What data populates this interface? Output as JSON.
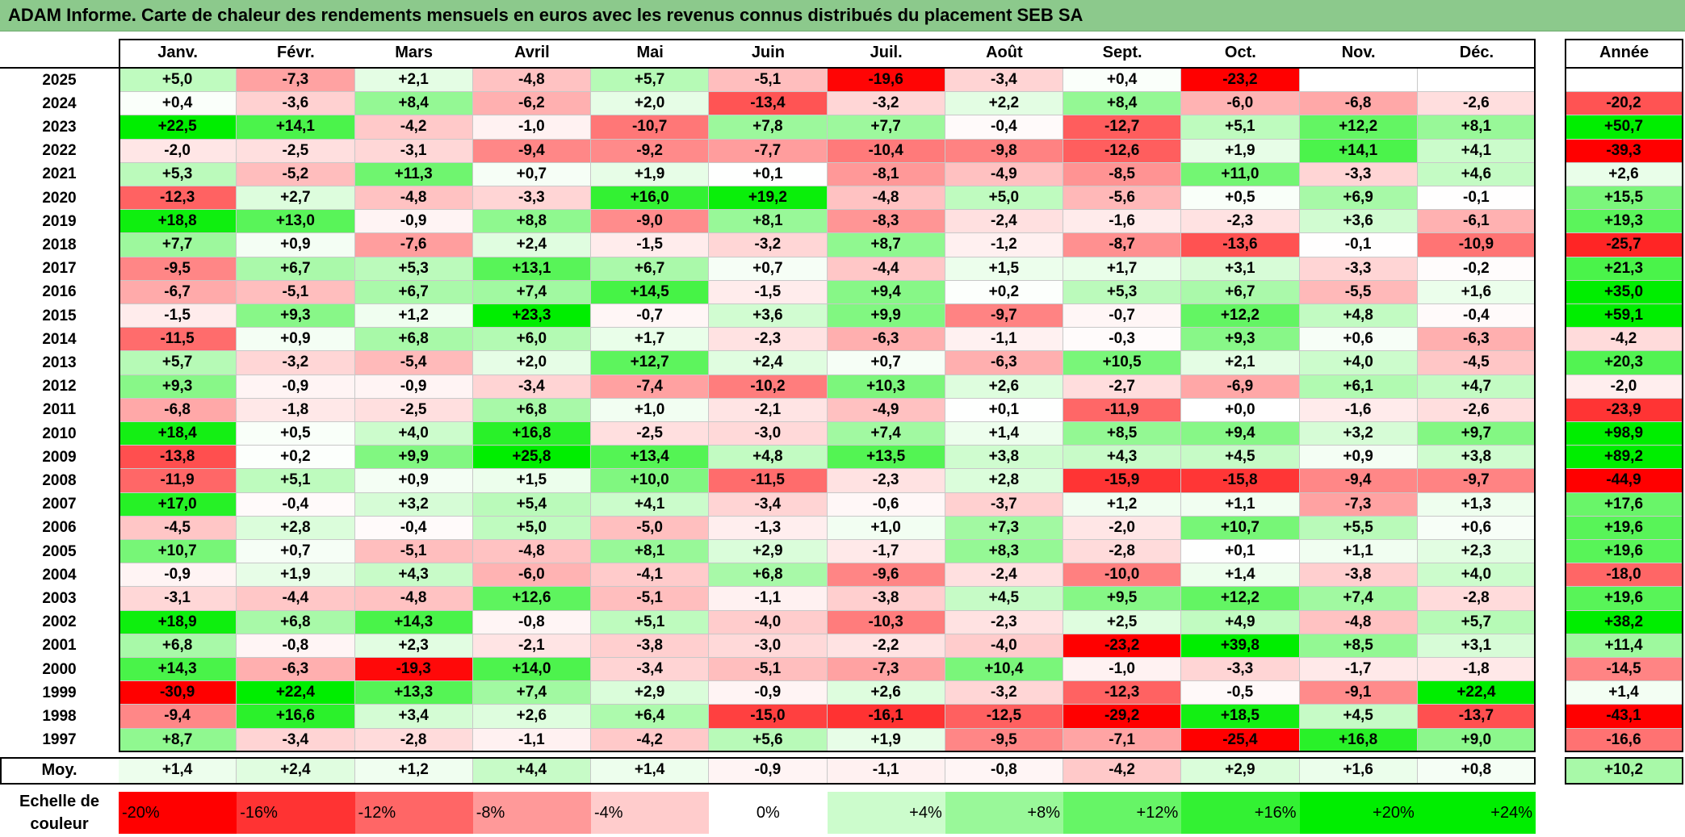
{
  "title": "ADAM Informe. Carte de chaleur des rendements mensuels en euros avec les revenus connus distribués du placement SEB SA",
  "chart_data": {
    "type": "heatmap",
    "columns": [
      "Janv.",
      "Févr.",
      "Mars",
      "Avril",
      "Mai",
      "Juin",
      "Juil.",
      "Août",
      "Sept.",
      "Oct.",
      "Nov.",
      "Déc."
    ],
    "annual_header": "Année",
    "rows": [
      {
        "year": "2025",
        "values": [
          "+5,0",
          "-7,3",
          "+2,1",
          "-4,8",
          "+5,7",
          "-5,1",
          "-19,6",
          "-3,4",
          "+0,4",
          "-23,2",
          "",
          ""
        ],
        "annual": ""
      },
      {
        "year": "2024",
        "values": [
          "+0,4",
          "-3,6",
          "+8,4",
          "-6,2",
          "+2,0",
          "-13,4",
          "-3,2",
          "+2,2",
          "+8,4",
          "-6,0",
          "-6,8",
          "-2,6"
        ],
        "annual": "-20,2"
      },
      {
        "year": "2023",
        "values": [
          "+22,5",
          "+14,1",
          "-4,2",
          "-1,0",
          "-10,7",
          "+7,8",
          "+7,7",
          "-0,4",
          "-12,7",
          "+5,1",
          "+12,2",
          "+8,1"
        ],
        "annual": "+50,7"
      },
      {
        "year": "2022",
        "values": [
          "-2,0",
          "-2,5",
          "-3,1",
          "-9,4",
          "-9,2",
          "-7,7",
          "-10,4",
          "-9,8",
          "-12,6",
          "+1,9",
          "+14,1",
          "+4,1"
        ],
        "annual": "-39,3"
      },
      {
        "year": "2021",
        "values": [
          "+5,3",
          "-5,2",
          "+11,3",
          "+0,7",
          "+1,9",
          "+0,1",
          "-8,1",
          "-4,9",
          "-8,5",
          "+11,0",
          "-3,3",
          "+4,6"
        ],
        "annual": "+2,6"
      },
      {
        "year": "2020",
        "values": [
          "-12,3",
          "+2,7",
          "-4,8",
          "-3,3",
          "+16,0",
          "+19,2",
          "-4,8",
          "+5,0",
          "-5,6",
          "+0,5",
          "+6,9",
          "-0,1"
        ],
        "annual": "+15,5"
      },
      {
        "year": "2019",
        "values": [
          "+18,8",
          "+13,0",
          "-0,9",
          "+8,8",
          "-9,0",
          "+8,1",
          "-8,3",
          "-2,4",
          "-1,6",
          "-2,3",
          "+3,6",
          "-6,1"
        ],
        "annual": "+19,3"
      },
      {
        "year": "2018",
        "values": [
          "+7,7",
          "+0,9",
          "-7,6",
          "+2,4",
          "-1,5",
          "-3,2",
          "+8,7",
          "-1,2",
          "-8,7",
          "-13,6",
          "-0,1",
          "-10,9"
        ],
        "annual": "-25,7"
      },
      {
        "year": "2017",
        "values": [
          "-9,5",
          "+6,7",
          "+5,3",
          "+13,1",
          "+6,7",
          "+0,7",
          "-4,4",
          "+1,5",
          "+1,7",
          "+3,1",
          "-3,3",
          "-0,2"
        ],
        "annual": "+21,3"
      },
      {
        "year": "2016",
        "values": [
          "-6,7",
          "-5,1",
          "+6,7",
          "+7,4",
          "+14,5",
          "-1,5",
          "+9,4",
          "+0,2",
          "+5,3",
          "+6,7",
          "-5,5",
          "+1,6"
        ],
        "annual": "+35,0"
      },
      {
        "year": "2015",
        "values": [
          "-1,5",
          "+9,3",
          "+1,2",
          "+23,3",
          "-0,7",
          "+3,6",
          "+9,9",
          "-9,7",
          "-0,7",
          "+12,2",
          "+4,8",
          "-0,4"
        ],
        "annual": "+59,1"
      },
      {
        "year": "2014",
        "values": [
          "-11,5",
          "+0,9",
          "+6,8",
          "+6,0",
          "+1,7",
          "-2,3",
          "-6,3",
          "-1,1",
          "-0,3",
          "+9,3",
          "+0,6",
          "-6,3"
        ],
        "annual": "-4,2"
      },
      {
        "year": "2013",
        "values": [
          "+5,7",
          "-3,2",
          "-5,4",
          "+2,0",
          "+12,7",
          "+2,4",
          "+0,7",
          "-6,3",
          "+10,5",
          "+2,1",
          "+4,0",
          "-4,5"
        ],
        "annual": "+20,3"
      },
      {
        "year": "2012",
        "values": [
          "+9,3",
          "-0,9",
          "-0,9",
          "-3,4",
          "-7,4",
          "-10,2",
          "+10,3",
          "+2,6",
          "-2,7",
          "-6,9",
          "+6,1",
          "+4,7"
        ],
        "annual": "-2,0"
      },
      {
        "year": "2011",
        "values": [
          "-6,8",
          "-1,8",
          "-2,5",
          "+6,8",
          "+1,0",
          "-2,1",
          "-4,9",
          "+0,1",
          "-11,9",
          "+0,0",
          "-1,6",
          "-2,6"
        ],
        "annual": "-23,9"
      },
      {
        "year": "2010",
        "values": [
          "+18,4",
          "+0,5",
          "+4,0",
          "+16,8",
          "-2,5",
          "-3,0",
          "+7,4",
          "+1,4",
          "+8,5",
          "+9,4",
          "+3,2",
          "+9,7"
        ],
        "annual": "+98,9"
      },
      {
        "year": "2009",
        "values": [
          "-13,8",
          "+0,2",
          "+9,9",
          "+25,8",
          "+13,4",
          "+4,8",
          "+13,5",
          "+3,8",
          "+4,3",
          "+4,5",
          "+0,9",
          "+3,8"
        ],
        "annual": "+89,2"
      },
      {
        "year": "2008",
        "values": [
          "-11,9",
          "+5,1",
          "+0,9",
          "+1,5",
          "+10,0",
          "-11,5",
          "-2,3",
          "+2,8",
          "-15,9",
          "-15,8",
          "-9,4",
          "-9,7"
        ],
        "annual": "-44,9"
      },
      {
        "year": "2007",
        "values": [
          "+17,0",
          "-0,4",
          "+3,2",
          "+5,4",
          "+4,1",
          "-3,4",
          "-0,6",
          "-3,7",
          "+1,2",
          "+1,1",
          "-7,3",
          "+1,3"
        ],
        "annual": "+17,6"
      },
      {
        "year": "2006",
        "values": [
          "-4,5",
          "+2,8",
          "-0,4",
          "+5,0",
          "-5,0",
          "-1,3",
          "+1,0",
          "+7,3",
          "-2,0",
          "+10,7",
          "+5,5",
          "+0,6"
        ],
        "annual": "+19,6"
      },
      {
        "year": "2005",
        "values": [
          "+10,7",
          "+0,7",
          "-5,1",
          "-4,8",
          "+8,1",
          "+2,9",
          "-1,7",
          "+8,3",
          "-2,8",
          "+0,1",
          "+1,1",
          "+2,3"
        ],
        "annual": "+19,6"
      },
      {
        "year": "2004",
        "values": [
          "-0,9",
          "+1,9",
          "+4,3",
          "-6,0",
          "-4,1",
          "+6,8",
          "-9,6",
          "-2,4",
          "-10,0",
          "+1,4",
          "-3,8",
          "+4,0"
        ],
        "annual": "-18,0"
      },
      {
        "year": "2003",
        "values": [
          "-3,1",
          "-4,4",
          "-4,8",
          "+12,6",
          "-5,1",
          "-1,1",
          "-3,8",
          "+4,5",
          "+9,5",
          "+12,2",
          "+7,4",
          "-2,8"
        ],
        "annual": "+19,6"
      },
      {
        "year": "2002",
        "values": [
          "+18,9",
          "+6,8",
          "+14,3",
          "-0,8",
          "+5,1",
          "-4,0",
          "-10,3",
          "-2,3",
          "+2,5",
          "+4,9",
          "-4,8",
          "+5,7"
        ],
        "annual": "+38,2"
      },
      {
        "year": "2001",
        "values": [
          "+6,8",
          "-0,8",
          "+2,3",
          "-2,1",
          "-3,8",
          "-3,0",
          "-2,2",
          "-4,0",
          "-23,2",
          "+39,8",
          "+8,5",
          "+3,1"
        ],
        "annual": "+11,4"
      },
      {
        "year": "2000",
        "values": [
          "+14,3",
          "-6,3",
          "-19,3",
          "+14,0",
          "-3,4",
          "-5,1",
          "-7,3",
          "+10,4",
          "-1,0",
          "-3,3",
          "-1,7",
          "-1,8"
        ],
        "annual": "-14,5"
      },
      {
        "year": "1999",
        "values": [
          "-30,9",
          "+22,4",
          "+13,3",
          "+7,4",
          "+2,9",
          "-0,9",
          "+2,6",
          "-3,2",
          "-12,3",
          "-0,5",
          "-9,1",
          "+22,4"
        ],
        "annual": "+1,4"
      },
      {
        "year": "1998",
        "values": [
          "-9,4",
          "+16,6",
          "+3,4",
          "+2,6",
          "+6,4",
          "-15,0",
          "-16,1",
          "-12,5",
          "-29,2",
          "+18,5",
          "+4,5",
          "-13,7"
        ],
        "annual": "-43,1"
      },
      {
        "year": "1997",
        "values": [
          "+8,7",
          "-3,4",
          "-2,8",
          "-1,1",
          "-4,2",
          "+5,6",
          "+1,9",
          "-9,5",
          "-7,1",
          "-25,4",
          "+16,8",
          "+9,0"
        ],
        "annual": "-16,6"
      }
    ],
    "average": {
      "label": "Moy.",
      "values": [
        "+1,4",
        "+2,4",
        "+1,2",
        "+4,4",
        "+1,4",
        "-0,9",
        "-1,1",
        "-0,8",
        "-4,2",
        "+2,9",
        "+1,6",
        "+0,8"
      ],
      "annual": "+10,2"
    },
    "scale": {
      "label_line1": "Echelle de",
      "label_line2": "couleur",
      "steps": [
        {
          "label": "-20%",
          "value": -20
        },
        {
          "label": "-16%",
          "value": -16
        },
        {
          "label": "-12%",
          "value": -12
        },
        {
          "label": "-8%",
          "value": -8
        },
        {
          "label": "-4%",
          "value": -4
        },
        {
          "label": "0%",
          "value": 0
        },
        {
          "label": "+4%",
          "value": 4
        },
        {
          "label": "+8%",
          "value": 8
        },
        {
          "label": "+12%",
          "value": 12
        },
        {
          "label": "+16%",
          "value": 16
        },
        {
          "label": "+20%",
          "value": 20
        },
        {
          "label": "+24%",
          "value": 24
        }
      ]
    },
    "colors": {
      "negative_max": "#ff0000",
      "neutral": "#ffffff",
      "positive_max": "#00ee00",
      "title_bg": "#8cc98c"
    }
  }
}
